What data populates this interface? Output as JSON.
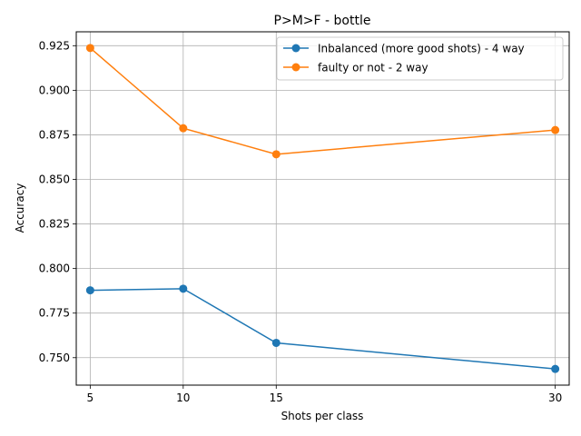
{
  "chart_data": {
    "type": "line",
    "title": "P>M>F - bottle",
    "xlabel": "Shots per class",
    "ylabel": "Accuracy",
    "x": [
      5,
      10,
      15,
      30
    ],
    "xticks": [
      "5",
      "10",
      "15",
      "30"
    ],
    "xlim": [
      4.25,
      30.75
    ],
    "ylim": [
      0.7346,
      0.9328
    ],
    "yticks": [
      "0.750",
      "0.775",
      "0.800",
      "0.825",
      "0.850",
      "0.875",
      "0.900",
      "0.925"
    ],
    "grid": true,
    "legend_position": "top-right",
    "series": [
      {
        "name": "Inbalanced (more good shots) - 4 way",
        "color": "#1f77b4",
        "values": [
          0.7878,
          0.7887,
          0.7583,
          0.7437
        ]
      },
      {
        "name": "faulty or not - 2 way",
        "color": "#ff7f0e",
        "values": [
          0.9237,
          0.8787,
          0.8641,
          0.8777
        ]
      }
    ]
  }
}
